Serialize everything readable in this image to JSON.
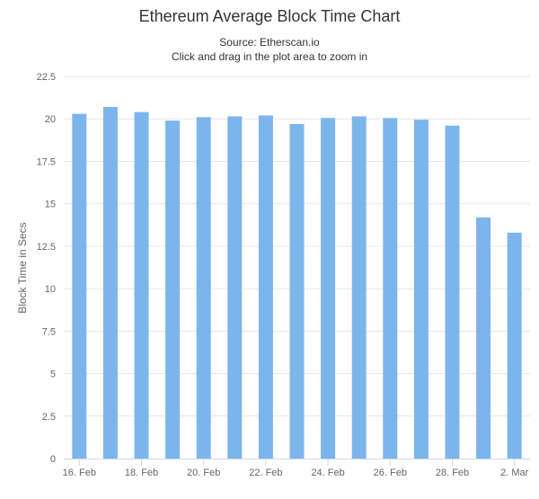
{
  "chart_data": {
    "type": "bar",
    "title": "Ethereum Average Block Time Chart",
    "subtitle_lines": [
      "Source: Etherscan.io",
      "Click and drag in the plot area to zoom in"
    ],
    "xlabel": "",
    "ylabel": "Block Time in Secs",
    "ylim": [
      0,
      22.5
    ],
    "yticks": [
      0,
      2.5,
      5,
      7.5,
      10,
      12.5,
      15,
      17.5,
      20,
      22.5
    ],
    "ytick_labels": [
      "0",
      "2.5",
      "5",
      "7.5",
      "10",
      "12.5",
      "15",
      "17.5",
      "20",
      "22.5"
    ],
    "categories": [
      "16. Feb",
      "17. Feb",
      "18. Feb",
      "19. Feb",
      "20. Feb",
      "21. Feb",
      "22. Feb",
      "23. Feb",
      "24. Feb",
      "25. Feb",
      "26. Feb",
      "27. Feb",
      "28. Feb",
      "1. Mar",
      "2. Mar"
    ],
    "xtick_labels": [
      "16. Feb",
      "",
      "18. Feb",
      "",
      "20. Feb",
      "",
      "22. Feb",
      "",
      "24. Feb",
      "",
      "26. Feb",
      "",
      "28. Feb",
      "",
      "2. Mar"
    ],
    "values": [
      20.3,
      20.7,
      20.4,
      19.9,
      20.1,
      20.15,
      20.2,
      19.7,
      20.05,
      20.15,
      20.05,
      19.95,
      19.6,
      14.2,
      13.3
    ],
    "bar_color": "#7cb5ec",
    "grid": true,
    "legend": "none"
  }
}
